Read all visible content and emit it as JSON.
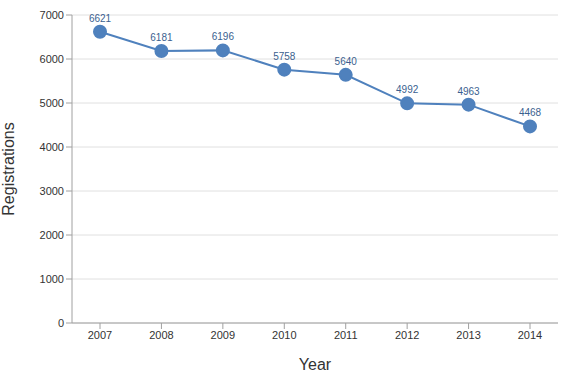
{
  "chart_data": {
    "type": "line",
    "x_label": "Year",
    "y_label": "Registrations",
    "categories": [
      "2007",
      "2008",
      "2009",
      "2010",
      "2011",
      "2012",
      "2013",
      "2014"
    ],
    "values": [
      6621,
      6181,
      6196,
      5758,
      5640,
      4992,
      4963,
      4468
    ],
    "color": "#4f81bd",
    "ylim": [
      0,
      7000
    ],
    "yticks": [
      0,
      1000,
      2000,
      3000,
      4000,
      5000,
      6000,
      7000
    ],
    "grid": true,
    "data_labels": true,
    "marker": "circle"
  }
}
